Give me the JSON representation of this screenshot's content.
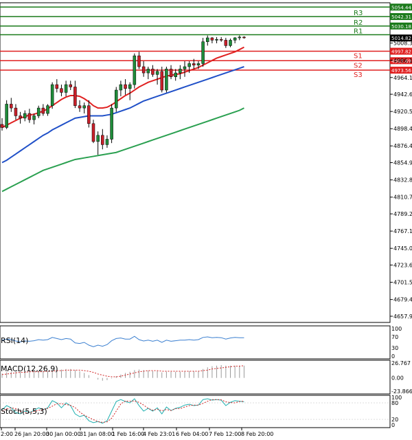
{
  "colors": {
    "resistance": "#1a7a1a",
    "support": "#e02020",
    "candle_bull": "#1f8c3a",
    "candle_bear": "#c8202a",
    "ma_fast": "#e02020",
    "ma_mid": "#2050c8",
    "ma_slow": "#2aa050",
    "rsi": "#3a7fd0",
    "macd_hist": "#999999",
    "macd_signal": "#d02020",
    "stoch_main": "#20b0b0",
    "stoch_signal": "#d02020",
    "price_box": "#000000"
  },
  "chart_data": {
    "type": "candlestick",
    "price_axis": {
      "range": [
        4650,
        5060
      ],
      "ticks": [
        "5008.30",
        "4986.15",
        "4964.10",
        "4942.65",
        "4920.55",
        "4898.45",
        "4876.40",
        "4854.95",
        "4832.80",
        "4810.70",
        "4789.25",
        "4767.15",
        "4745.05",
        "4723.60",
        "4701.50",
        "4679.40",
        "4657.95"
      ]
    },
    "time_axis": {
      "labels": [
        "2:00",
        "26 Jan 20:00",
        "30 Jan 00:00",
        "31 Jan 08:00",
        "1 Feb 16:00",
        "4 Feb 23:01",
        "6 Feb 04:00",
        "7 Feb 12:00",
        "8 Feb 20:00"
      ]
    },
    "levels": [
      {
        "name": "",
        "value": 5054.44,
        "value_label": "5054.44",
        "kind": "resistance"
      },
      {
        "name": "R3",
        "value": 5042.31,
        "value_label": "5042.31",
        "kind": "resistance"
      },
      {
        "name": "R2",
        "value": 5030.18,
        "value_label": "5030.18",
        "kind": "resistance"
      },
      {
        "name": "R1",
        "value": 5019.0,
        "value_label": "",
        "kind": "resistance"
      },
      {
        "name": "S1",
        "value": 4997.82,
        "value_label": "4997.82",
        "kind": "support"
      },
      {
        "name": "S2",
        "value": 4985.69,
        "value_label": "4985.69",
        "kind": "support"
      },
      {
        "name": "S3",
        "value": 4973.56,
        "value_label": "4973.56",
        "kind": "support"
      }
    ],
    "current_price": {
      "value": 5014.82,
      "value_label": "5014.82"
    },
    "candles": [
      [
        4904,
        4912,
        4896,
        4900
      ],
      [
        4900,
        4935,
        4898,
        4930
      ],
      [
        4930,
        4938,
        4920,
        4925
      ],
      [
        4925,
        4930,
        4910,
        4915
      ],
      [
        4915,
        4920,
        4905,
        4912
      ],
      [
        4912,
        4922,
        4908,
        4918
      ],
      [
        4918,
        4924,
        4906,
        4910
      ],
      [
        4910,
        4918,
        4904,
        4915
      ],
      [
        4915,
        4928,
        4912,
        4925
      ],
      [
        4925,
        4930,
        4915,
        4918
      ],
      [
        4918,
        4930,
        4915,
        4928
      ],
      [
        4928,
        4958,
        4924,
        4955
      ],
      [
        4955,
        4962,
        4945,
        4950
      ],
      [
        4950,
        4955,
        4940,
        4945
      ],
      [
        4945,
        4960,
        4940,
        4955
      ],
      [
        4955,
        4960,
        4948,
        4952
      ],
      [
        4952,
        4960,
        4925,
        4928
      ],
      [
        4928,
        4935,
        4920,
        4925
      ],
      [
        4925,
        4932,
        4918,
        4928
      ],
      [
        4928,
        4935,
        4900,
        4905
      ],
      [
        4905,
        4910,
        4880,
        4882
      ],
      [
        4882,
        4895,
        4865,
        4890
      ],
      [
        4890,
        4898,
        4872,
        4878
      ],
      [
        4878,
        4890,
        4874,
        4885
      ],
      [
        4885,
        4930,
        4880,
        4925
      ],
      [
        4925,
        4952,
        4920,
        4948
      ],
      [
        4948,
        4960,
        4940,
        4955
      ],
      [
        4955,
        4962,
        4942,
        4950
      ],
      [
        4950,
        4958,
        4935,
        4955
      ],
      [
        4955,
        4995,
        4950,
        4992
      ],
      [
        4992,
        4997,
        4975,
        4978
      ],
      [
        4978,
        4985,
        4965,
        4970
      ],
      [
        4970,
        4978,
        4962,
        4975
      ],
      [
        4975,
        4980,
        4965,
        4968
      ],
      [
        4968,
        4975,
        4955,
        4972
      ],
      [
        4972,
        4978,
        4945,
        4948
      ],
      [
        4948,
        4978,
        4945,
        4975
      ],
      [
        4975,
        4980,
        4962,
        4965
      ],
      [
        4965,
        4975,
        4960,
        4970
      ],
      [
        4970,
        4980,
        4962,
        4975
      ],
      [
        4975,
        4985,
        4965,
        4978
      ],
      [
        4978,
        4985,
        4970,
        4982
      ],
      [
        4982,
        4988,
        4975,
        4980
      ],
      [
        4980,
        4985,
        4975,
        4982
      ],
      [
        4982,
        5015,
        4978,
        5010
      ],
      [
        5010,
        5018,
        5005,
        5015
      ],
      [
        5015,
        5016,
        5008,
        5012
      ],
      [
        5012,
        5016,
        5008,
        5013
      ],
      [
        5013,
        5016,
        5010,
        5012
      ],
      [
        5012,
        5015,
        5002,
        5005
      ],
      [
        5005,
        5014,
        5003,
        5012
      ],
      [
        5012,
        5016,
        5008,
        5015
      ],
      [
        5015,
        5018,
        5012,
        5016
      ],
      [
        5016,
        5017,
        5014,
        5015
      ]
    ],
    "moving_averages": [
      {
        "key": "ma_fast",
        "values": [
          4900,
          4903,
          4906,
          4909,
          4912,
          4914,
          4916,
          4917,
          4919,
          4921,
          4924,
          4928,
          4932,
          4936,
          4939,
          4941,
          4941,
          4940,
          4937,
          4933,
          4928,
          4925,
          4925,
          4926,
          4929,
          4933,
          4937,
          4941,
          4944,
          4948,
          4952,
          4955,
          4958,
          4960,
          4962,
          4964,
          4966,
          4967,
          4968,
          4969,
          4971,
          4973,
          4975,
          4977,
          4980,
          4983,
          4986,
          4989,
          4991,
          4993,
          4995,
          4997,
          5000,
          5003
        ]
      },
      {
        "key": "ma_mid",
        "values": [
          4855,
          4858,
          4862,
          4866,
          4870,
          4874,
          4878,
          4882,
          4886,
          4890,
          4893,
          4897,
          4900,
          4903,
          4906,
          4909,
          4912,
          4913,
          4914,
          4915,
          4915,
          4915,
          4915,
          4916,
          4917,
          4919,
          4921,
          4923,
          4925,
          4928,
          4931,
          4934,
          4936,
          4938,
          4940,
          4942,
          4944,
          4946,
          4948,
          4950,
          4952,
          4954,
          4956,
          4958,
          4960,
          4962,
          4964,
          4966,
          4968,
          4970,
          4972,
          4974,
          4976,
          4978
        ]
      },
      {
        "key": "ma_slow",
        "values": [
          4818,
          4821,
          4824,
          4827,
          4830,
          4833,
          4836,
          4839,
          4842,
          4845,
          4847,
          4849,
          4851,
          4853,
          4855,
          4857,
          4859,
          4860,
          4861,
          4862,
          4863,
          4864,
          4865,
          4866,
          4867,
          4868,
          4870,
          4872,
          4874,
          4876,
          4878,
          4880,
          4882,
          4884,
          4886,
          4888,
          4890,
          4892,
          4894,
          4896,
          4898,
          4900,
          4902,
          4904,
          4906,
          4908,
          4910,
          4912,
          4914,
          4916,
          4918,
          4920,
          4922,
          4925
        ]
      }
    ],
    "indicators": {
      "rsi": {
        "label": "RSI(14)",
        "range": [
          0,
          100
        ],
        "ticks": [
          "100",
          "70",
          "30",
          "0"
        ],
        "values": [
          58,
          62,
          60,
          55,
          52,
          55,
          54,
          56,
          60,
          58,
          60,
          68,
          64,
          60,
          64,
          62,
          48,
          46,
          50,
          40,
          34,
          40,
          36,
          42,
          56,
          64,
          66,
          62,
          62,
          72,
          60,
          55,
          58,
          54,
          58,
          50,
          58,
          54,
          56,
          58,
          58,
          60,
          58,
          60,
          68,
          70,
          67,
          68,
          67,
          62,
          66,
          68,
          67,
          67
        ]
      },
      "macd": {
        "label": "MACD(12,26,9)",
        "range": [
          -23.866,
          26.767
        ],
        "ticks": [
          "26.767",
          "0.00",
          "-23.866"
        ],
        "hist": [
          8,
          10,
          11,
          11,
          11,
          12,
          11,
          11,
          12,
          12,
          12,
          14,
          15,
          15,
          16,
          16,
          14,
          12,
          9,
          5,
          0,
          -3,
          -5,
          -4,
          -1,
          3,
          6,
          9,
          11,
          14,
          15,
          14,
          13,
          12,
          12,
          10,
          11,
          11,
          11,
          11,
          12,
          12,
          12,
          12,
          16,
          19,
          21,
          22,
          23,
          22,
          22,
          22,
          22,
          22
        ],
        "signal": [
          6,
          7,
          8,
          9,
          10,
          10,
          11,
          11,
          11,
          11,
          12,
          12,
          13,
          13,
          14,
          14,
          14,
          14,
          13,
          12,
          10,
          7,
          5,
          3,
          2,
          2,
          3,
          5,
          7,
          9,
          11,
          12,
          13,
          13,
          13,
          12,
          12,
          12,
          12,
          12,
          12,
          12,
          12,
          12,
          13,
          14,
          16,
          17,
          18,
          19,
          20,
          21,
          21,
          22
        ]
      },
      "stoch": {
        "label": "Stoch(5,5,3)",
        "range": [
          0,
          100
        ],
        "ticks": [
          "100",
          "80",
          "20",
          "0"
        ],
        "main": [
          55,
          70,
          62,
          45,
          40,
          50,
          45,
          52,
          62,
          55,
          62,
          88,
          80,
          62,
          80,
          70,
          40,
          30,
          35,
          15,
          8,
          12,
          6,
          15,
          50,
          85,
          92,
          85,
          80,
          95,
          70,
          50,
          60,
          50,
          62,
          40,
          65,
          52,
          60,
          64,
          72,
          75,
          70,
          72,
          92,
          95,
          90,
          92,
          90,
          70,
          82,
          88,
          86,
          84
        ],
        "signal": [
          50,
          58,
          62,
          59,
          49,
          45,
          45,
          49,
          53,
          56,
          60,
          68,
          77,
          77,
          74,
          71,
          63,
          47,
          35,
          27,
          19,
          12,
          9,
          11,
          24,
          50,
          76,
          87,
          86,
          87,
          82,
          72,
          60,
          53,
          57,
          51,
          56,
          52,
          59,
          59,
          65,
          70,
          72,
          72,
          78,
          86,
          92,
          92,
          91,
          84,
          81,
          80,
          85,
          86
        ]
      }
    }
  }
}
